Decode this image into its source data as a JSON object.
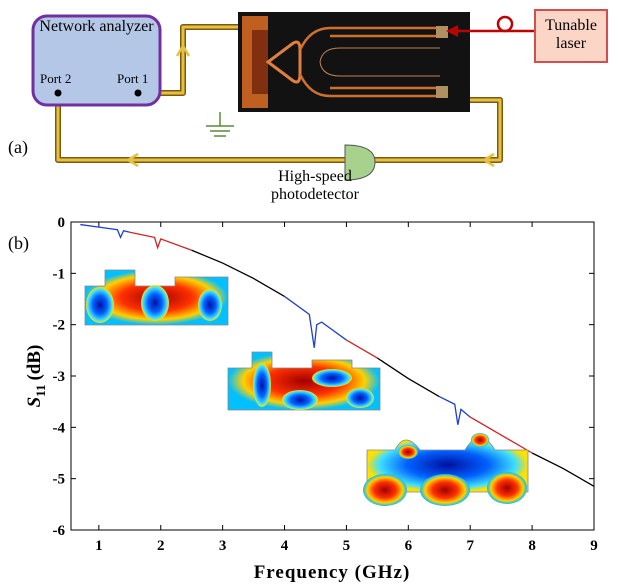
{
  "diagram": {
    "panel_label": "(a)",
    "network_analyzer": {
      "title": "Network analyzer",
      "port_left": "Port 2",
      "port_right": "Port 1"
    },
    "laser": "Tunable laser",
    "detector": "High-speed photodetector"
  },
  "chart_data": {
    "type": "line",
    "panel_label": "(b)",
    "xlabel": "Frequency (GHz)",
    "ylabel": {
      "symbol": "S",
      "subscript": "11",
      "unit": "(dB)"
    },
    "xlim": [
      0.55,
      9
    ],
    "xticks": [
      1,
      2,
      3,
      4,
      5,
      6,
      7,
      8,
      9
    ],
    "ylim": [
      -6,
      0
    ],
    "yticks": [
      0,
      -1,
      -2,
      -3,
      -4,
      -5,
      -6
    ],
    "series": [
      {
        "color": "#1f3fd0",
        "x": [
          0.7,
          1.0,
          1.3,
          1.35,
          1.4,
          1.5
        ],
        "values": [
          -0.05,
          -0.1,
          -0.15,
          -0.3,
          -0.17,
          -0.2
        ]
      },
      {
        "color": "#d42020",
        "x": [
          1.5,
          1.9,
          1.95,
          2.0,
          2.5
        ],
        "values": [
          -0.2,
          -0.3,
          -0.5,
          -0.33,
          -0.55
        ]
      },
      {
        "color": "#000000",
        "x": [
          2.5,
          3.0,
          3.5,
          4.0
        ],
        "values": [
          -0.55,
          -0.8,
          -1.1,
          -1.45
        ]
      },
      {
        "color": "#1f3fd0",
        "x": [
          4.0,
          4.4,
          4.48,
          4.52,
          4.6,
          5.0
        ],
        "values": [
          -1.45,
          -1.8,
          -2.45,
          -2.0,
          -1.95,
          -2.3
        ]
      },
      {
        "color": "#d42020",
        "x": [
          5.0,
          5.5
        ],
        "values": [
          -2.3,
          -2.65
        ]
      },
      {
        "color": "#000000",
        "x": [
          5.5,
          6.0,
          6.5
        ],
        "values": [
          -2.65,
          -3.05,
          -3.4
        ]
      },
      {
        "color": "#1f3fd0",
        "x": [
          6.5,
          6.75,
          6.8,
          6.85,
          7.0
        ],
        "values": [
          -3.4,
          -3.55,
          -3.95,
          -3.65,
          -3.8
        ]
      },
      {
        "color": "#d42020",
        "x": [
          7.0,
          7.5,
          8.0
        ],
        "values": [
          -3.8,
          -4.15,
          -4.5
        ]
      },
      {
        "color": "#000000",
        "x": [
          8.0,
          8.5,
          9.0
        ],
        "values": [
          -4.5,
          -4.8,
          -5.15
        ]
      }
    ]
  }
}
